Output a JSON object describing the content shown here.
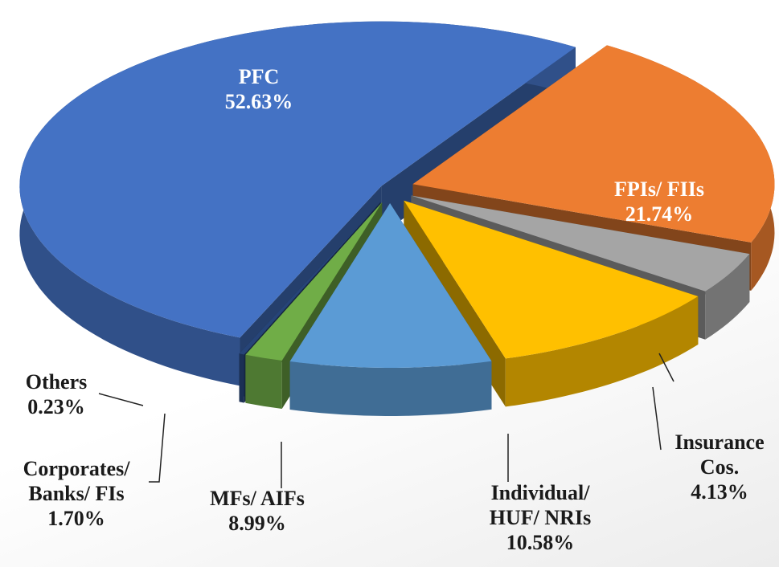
{
  "chart_data": {
    "type": "pie",
    "categories": [
      "PFC",
      "FPIs/ FIIs",
      "Insurance Cos.",
      "Individual/ HUF/ NRIs",
      "MFs/ AIFs",
      "Corporates/ Banks/ FIs",
      "Others"
    ],
    "values": [
      52.63,
      21.74,
      4.13,
      10.58,
      8.99,
      1.7,
      0.23
    ],
    "value_labels": [
      "52.63%",
      "21.74%",
      "4.13%",
      "10.58%",
      "8.99%",
      "1.70%",
      "0.23%"
    ],
    "colors": [
      "#4472c4",
      "#ed7d31",
      "#a5a5a5",
      "#ffc000",
      "#5b9bd5",
      "#70ad47",
      "#264478"
    ]
  }
}
